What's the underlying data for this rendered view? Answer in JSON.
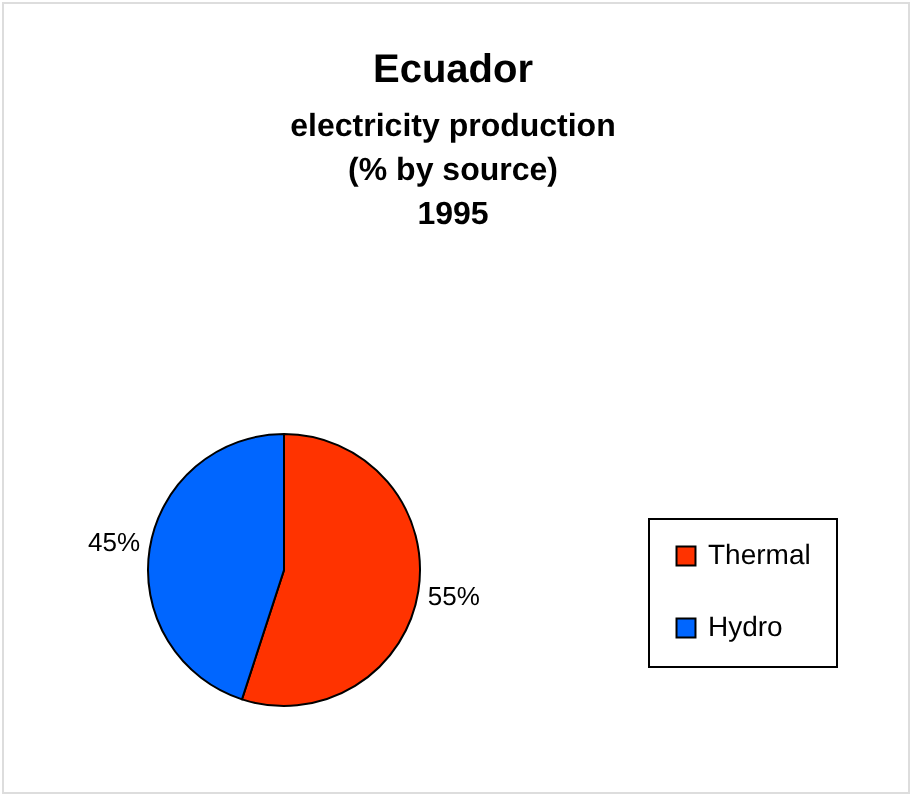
{
  "chart_data": {
    "type": "pie",
    "title": "Ecuador",
    "subtitle": "electricity production\n(% by source)\n1995",
    "categories": [
      "Thermal",
      "Hydro"
    ],
    "values": [
      55,
      45
    ],
    "colors": [
      "#ff3300",
      "#0066ff"
    ],
    "value_labels": [
      "55%",
      "45%"
    ],
    "legend": "right"
  }
}
